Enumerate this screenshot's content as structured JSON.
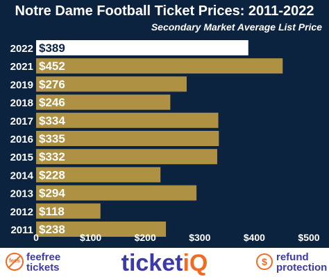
{
  "chart_data": {
    "type": "bar",
    "orientation": "horizontal",
    "title": "Notre Dame Football Ticket Prices: 2011-2022",
    "subtitle": "Secondary Market Average List Price",
    "categories": [
      "2022",
      "2021",
      "2019",
      "2018",
      "2017",
      "2016",
      "2015",
      "2014",
      "2013",
      "2012",
      "2011"
    ],
    "values": [
      389,
      452,
      276,
      246,
      334,
      335,
      332,
      228,
      294,
      118,
      238
    ],
    "data_labels": [
      "$389",
      "$452",
      "$276",
      "$246",
      "$334",
      "$335",
      "$332",
      "$228",
      "$294",
      "$118",
      "$238"
    ],
    "x_ticks": [
      0,
      100,
      200,
      300,
      400,
      500
    ],
    "x_tick_labels": [
      "0",
      "$100",
      "$200",
      "$300",
      "$400",
      "$500"
    ],
    "xlim": [
      0,
      500
    ],
    "grid": false,
    "legend": "none",
    "highlight_category": "2022",
    "colors": {
      "background": "#0c2340",
      "bar": "#ae9142",
      "bar_highlight": "#ffffff",
      "label_on_bar": "#ffffff",
      "label_on_highlight": "#0c2340",
      "text": "#ffffff",
      "brand_blue": "#3b3aa8",
      "brand_orange": "#f26a21"
    }
  },
  "footer": {
    "fee_icon_text": "fees",
    "fee_line1": "feefree",
    "fee_line2": "tickets",
    "logo_main": "ticket",
    "logo_accent": "iQ",
    "refund_icon_text": "$",
    "refund_line1": "refund",
    "refund_line2": "protection"
  }
}
